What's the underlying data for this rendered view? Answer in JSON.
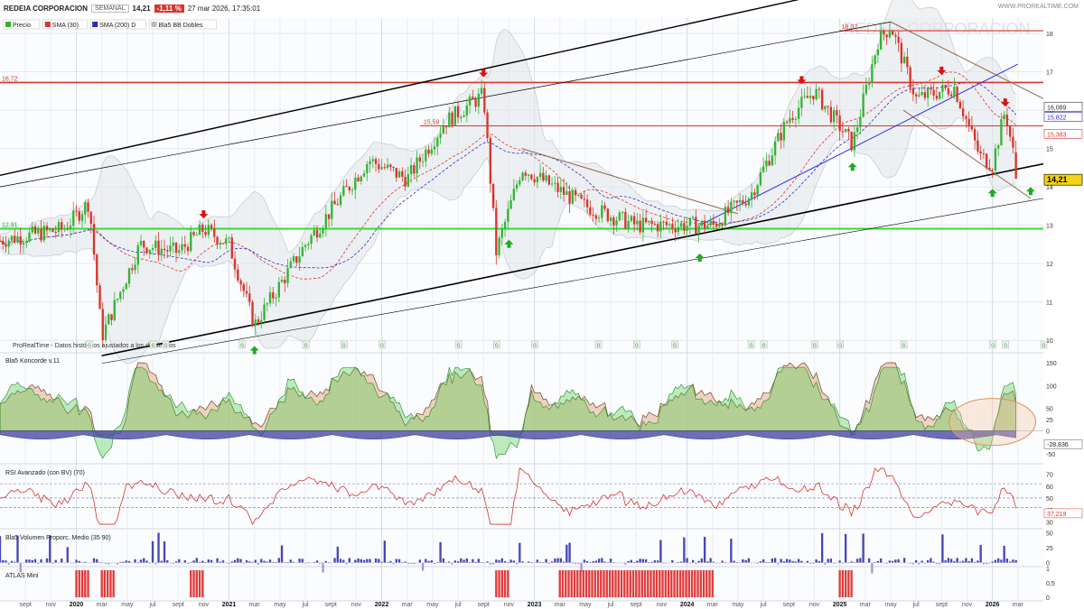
{
  "header": {
    "name": "REDEIA CORPORACION",
    "period": "SEMANAL",
    "last": "14,21",
    "change": "-1,11 %",
    "datetime": "27 mar 2026, 17:35:01",
    "brand": "WWW.PROREALTIME.COM",
    "watermark": "REDEIA CORPORACION"
  },
  "colors": {
    "up": "#33b333",
    "down": "#d9342b",
    "sma30": "#d9342b",
    "sma200": "#2b2bb8",
    "support": "#33dd33",
    "resistance": "#d9342b",
    "channel": "#000000",
    "trend_brown": "#8b6b4a",
    "highlight_oval": "#e0905a"
  },
  "chart_data": [
    {
      "id": "price",
      "type": "candlestick",
      "title": "REDEIA CORPORACION",
      "legend": [
        "Precio",
        "SMA (30)",
        "SMA (200) D",
        "Bla5 BB Dobles"
      ],
      "ylim": [
        9.7,
        18.4
      ],
      "yticks": [
        10,
        11,
        12,
        13,
        14,
        15,
        16,
        17,
        18
      ],
      "xlim": [
        "2019-07",
        "2026-05"
      ],
      "x_tick_labels": [
        "sept",
        "nov",
        "2020",
        "mar",
        "may",
        "jul",
        "sept",
        "nov",
        "2021",
        "mar",
        "may",
        "jul",
        "sept",
        "nov",
        "2022",
        "mar",
        "may",
        "jul",
        "sept",
        "nov",
        "2023",
        "mar",
        "may",
        "jul",
        "sept",
        "nov",
        "2024",
        "mar",
        "may",
        "jul",
        "sept",
        "nov",
        "2025",
        "mar",
        "may",
        "jul",
        "sept",
        "nov",
        "2026",
        "mar",
        "may"
      ],
      "series": [
        {
          "name": "Precio",
          "type": "ohlc_weekly",
          "key_points": [
            [
              "2019-07",
              12.6
            ],
            [
              "2019-12",
              12.9
            ],
            [
              "2020-02",
              13.6
            ],
            [
              "2020-03",
              10.1
            ],
            [
              "2020-06",
              12.5
            ],
            [
              "2020-09",
              12.3
            ],
            [
              "2020-11",
              12.9
            ],
            [
              "2021-01",
              12.5
            ],
            [
              "2021-03",
              10.4
            ],
            [
              "2021-07",
              12.5
            ],
            [
              "2021-12",
              14.7
            ],
            [
              "2022-03",
              14.2
            ],
            [
              "2022-06",
              15.7
            ],
            [
              "2022-09",
              16.4
            ],
            [
              "2022-10",
              12.3
            ],
            [
              "2022-12",
              14.5
            ],
            [
              "2023-05",
              13.5
            ],
            [
              "2023-09",
              13.0
            ],
            [
              "2024-03",
              13.0
            ],
            [
              "2024-06",
              13.8
            ],
            [
              "2024-09",
              15.8
            ],
            [
              "2024-11",
              16.5
            ],
            [
              "2025-02",
              15.1
            ],
            [
              "2025-04",
              17.8
            ],
            [
              "2025-05",
              18.2
            ],
            [
              "2025-07",
              16.3
            ],
            [
              "2025-10",
              16.6
            ],
            [
              "2025-12",
              14.8
            ],
            [
              "2026-01",
              14.6
            ],
            [
              "2026-02",
              16.0
            ],
            [
              "2026-03",
              14.21
            ]
          ]
        },
        {
          "name": "SMA (30)",
          "type": "line"
        },
        {
          "name": "SMA (200) D",
          "type": "line"
        }
      ],
      "price_labels": [
        {
          "text": "16,72",
          "value": 16.72
        },
        {
          "text": "15,59",
          "value": 15.59
        },
        {
          "text": "18,07",
          "value": 18.07
        },
        {
          "text": "12,91",
          "value": 12.91
        }
      ],
      "right_labels": [
        "16,089",
        "15,822",
        "15,383",
        "14,21"
      ],
      "horizontal_levels": [
        {
          "value": 18.07,
          "role": "resistance"
        },
        {
          "value": 16.72,
          "role": "resistance"
        },
        {
          "value": 15.59,
          "role": "resistance"
        },
        {
          "value": 12.91,
          "role": "support"
        }
      ],
      "arrows_down": [
        "2020-11",
        "2022-09",
        "2024-10",
        "2025-09",
        "2026-02"
      ],
      "arrows_up": [
        "2021-03",
        "2022-11",
        "2024-02",
        "2025-02",
        "2026-01",
        "2026-04"
      ],
      "caption": "ProRealTime - Datos históricos ajustados a los dividendos"
    },
    {
      "id": "koncorde",
      "type": "area",
      "title": "Bla5 Koncorde v.11",
      "ylim": [
        -70,
        170
      ],
      "yticks": [
        -50,
        -25,
        0,
        25,
        50,
        100,
        150
      ],
      "last_value_label": "-28,836"
    },
    {
      "id": "rsi",
      "type": "line",
      "title": "RSI Avanzado (con BV)",
      "period": "70",
      "ylim": [
        25,
        78
      ],
      "yticks": [
        30,
        40,
        50,
        60,
        70
      ],
      "last_value_label": "37,219"
    },
    {
      "id": "volume",
      "type": "bar",
      "title": "Bla5 Volumen Proporc. Medio",
      "period": "35 90",
      "ylim": [
        -5,
        55
      ],
      "yticks": [
        0,
        25,
        50
      ]
    },
    {
      "id": "atlas",
      "type": "bar",
      "title": "ATLAS Mini",
      "ylim": [
        0,
        1
      ],
      "yticks": [
        "0",
        "0,5",
        "1"
      ],
      "active_ranges": [
        [
          "2020-01",
          "2020-02"
        ],
        [
          "2020-03",
          "2020-04"
        ],
        [
          "2020-10",
          "2020-11"
        ],
        [
          "2022-10",
          "2022-11"
        ],
        [
          "2023-03",
          "2024-03"
        ],
        [
          "2025-01",
          "2025-02"
        ]
      ]
    }
  ]
}
